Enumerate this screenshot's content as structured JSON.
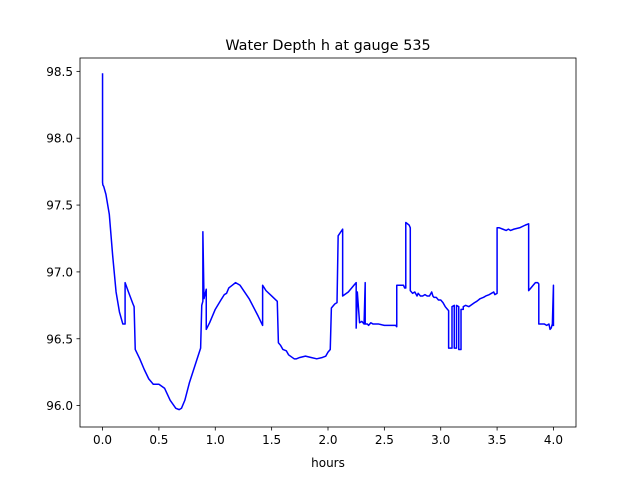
{
  "chart_data": {
    "type": "line",
    "title": "Water Depth h at gauge 535",
    "xlabel": "hours",
    "ylabel": "",
    "xlim": [
      -0.2,
      4.2
    ],
    "ylim": [
      95.84,
      98.6
    ],
    "x_ticks": [
      0.0,
      0.5,
      1.0,
      1.5,
      2.0,
      2.5,
      3.0,
      3.5,
      4.0
    ],
    "x_tick_labels": [
      "0.0",
      "0.5",
      "1.0",
      "1.5",
      "2.0",
      "2.5",
      "3.0",
      "3.5",
      "4.0"
    ],
    "y_ticks": [
      96.0,
      96.5,
      97.0,
      97.5,
      98.0,
      98.5
    ],
    "y_tick_labels": [
      "96.0",
      "96.5",
      "97.0",
      "97.5",
      "98.0",
      "98.5"
    ],
    "grid": false,
    "legend": "none",
    "series": [
      {
        "color": "#0000ff",
        "x": [
          0.0,
          0.0,
          0.003,
          0.01,
          0.03,
          0.06,
          0.09,
          0.12,
          0.15,
          0.18,
          0.2,
          0.2,
          0.23,
          0.27,
          0.28,
          0.29,
          0.33,
          0.37,
          0.41,
          0.45,
          0.5,
          0.55,
          0.6,
          0.65,
          0.68,
          0.7,
          0.73,
          0.77,
          0.82,
          0.87,
          0.88,
          0.89,
          0.89,
          0.9,
          0.92,
          0.92,
          0.95,
          1.0,
          1.05,
          1.08,
          1.1,
          1.12,
          1.15,
          1.18,
          1.22,
          1.3,
          1.38,
          1.42,
          1.42,
          1.45,
          1.5,
          1.55,
          1.56,
          1.58,
          1.6,
          1.63,
          1.65,
          1.7,
          1.72,
          1.75,
          1.8,
          1.85,
          1.9,
          1.95,
          1.98,
          2.0,
          2.02,
          2.03,
          2.06,
          2.08,
          2.09,
          2.13,
          2.13,
          2.18,
          2.23,
          2.25,
          2.25,
          2.26,
          2.28,
          2.3,
          2.32,
          2.33,
          2.33,
          2.35,
          2.36,
          2.36,
          2.38,
          2.4,
          2.45,
          2.5,
          2.55,
          2.6,
          2.61,
          2.61,
          2.64,
          2.67,
          2.68,
          2.69,
          2.69,
          2.72,
          2.73,
          2.73,
          2.75,
          2.77,
          2.79,
          2.8,
          2.82,
          2.84,
          2.86,
          2.88,
          2.9,
          2.92,
          2.93,
          2.94,
          2.96,
          2.98,
          3.0,
          3.02,
          3.04,
          3.06,
          3.07,
          3.07,
          3.09,
          3.1,
          3.1,
          3.12,
          3.12,
          3.14,
          3.14,
          3.16,
          3.16,
          3.18,
          3.18,
          3.2,
          3.2,
          3.22,
          3.22,
          3.25,
          3.3,
          3.32,
          3.35,
          3.38,
          3.4,
          3.43,
          3.45,
          3.47,
          3.48,
          3.5,
          3.5,
          3.52,
          3.55,
          3.58,
          3.6,
          3.62,
          3.65,
          3.7,
          3.75,
          3.78,
          3.78,
          3.8,
          3.82,
          3.84,
          3.86,
          3.87,
          3.87,
          3.9,
          3.92,
          3.94,
          3.96,
          3.97,
          3.98,
          3.99,
          3.99,
          4.0,
          4.0
        ],
        "y": [
          98.48,
          97.67,
          97.65,
          97.64,
          97.58,
          97.43,
          97.12,
          96.85,
          96.7,
          96.61,
          96.61,
          96.92,
          96.85,
          96.76,
          96.74,
          96.42,
          96.35,
          96.27,
          96.2,
          96.16,
          96.16,
          96.13,
          96.04,
          95.98,
          95.97,
          95.98,
          96.04,
          96.17,
          96.3,
          96.43,
          96.75,
          96.78,
          97.3,
          96.8,
          96.87,
          96.57,
          96.62,
          96.72,
          96.79,
          96.83,
          96.84,
          96.88,
          96.9,
          96.92,
          96.9,
          96.8,
          96.67,
          96.6,
          96.9,
          96.86,
          96.82,
          96.78,
          96.47,
          96.45,
          96.42,
          96.41,
          96.38,
          96.35,
          96.35,
          96.36,
          96.37,
          96.36,
          96.35,
          96.36,
          96.37,
          96.4,
          96.42,
          96.73,
          96.76,
          96.77,
          97.27,
          97.32,
          96.82,
          96.85,
          96.9,
          96.92,
          96.58,
          96.85,
          96.62,
          96.63,
          96.61,
          96.92,
          96.61,
          96.61,
          96.6,
          96.6,
          96.62,
          96.61,
          96.61,
          96.6,
          96.6,
          96.6,
          96.59,
          96.9,
          96.9,
          96.9,
          96.88,
          96.88,
          97.37,
          97.35,
          97.33,
          96.86,
          96.84,
          96.85,
          96.82,
          96.84,
          96.82,
          96.82,
          96.83,
          96.82,
          96.82,
          96.85,
          96.82,
          96.81,
          96.81,
          96.79,
          96.79,
          96.77,
          96.74,
          96.72,
          96.71,
          96.43,
          96.43,
          96.43,
          96.74,
          96.75,
          96.43,
          96.43,
          96.75,
          96.74,
          96.42,
          96.42,
          96.72,
          96.72,
          96.74,
          96.75,
          96.75,
          96.74,
          96.77,
          96.78,
          96.8,
          96.81,
          96.82,
          96.83,
          96.84,
          96.85,
          96.83,
          96.84,
          97.33,
          97.33,
          97.32,
          97.31,
          97.32,
          97.31,
          97.32,
          97.33,
          97.35,
          97.36,
          96.86,
          96.88,
          96.9,
          96.92,
          96.92,
          96.91,
          96.61,
          96.61,
          96.61,
          96.6,
          96.61,
          96.57,
          96.58,
          96.61,
          96.6,
          96.9,
          96.6
        ]
      }
    ]
  }
}
